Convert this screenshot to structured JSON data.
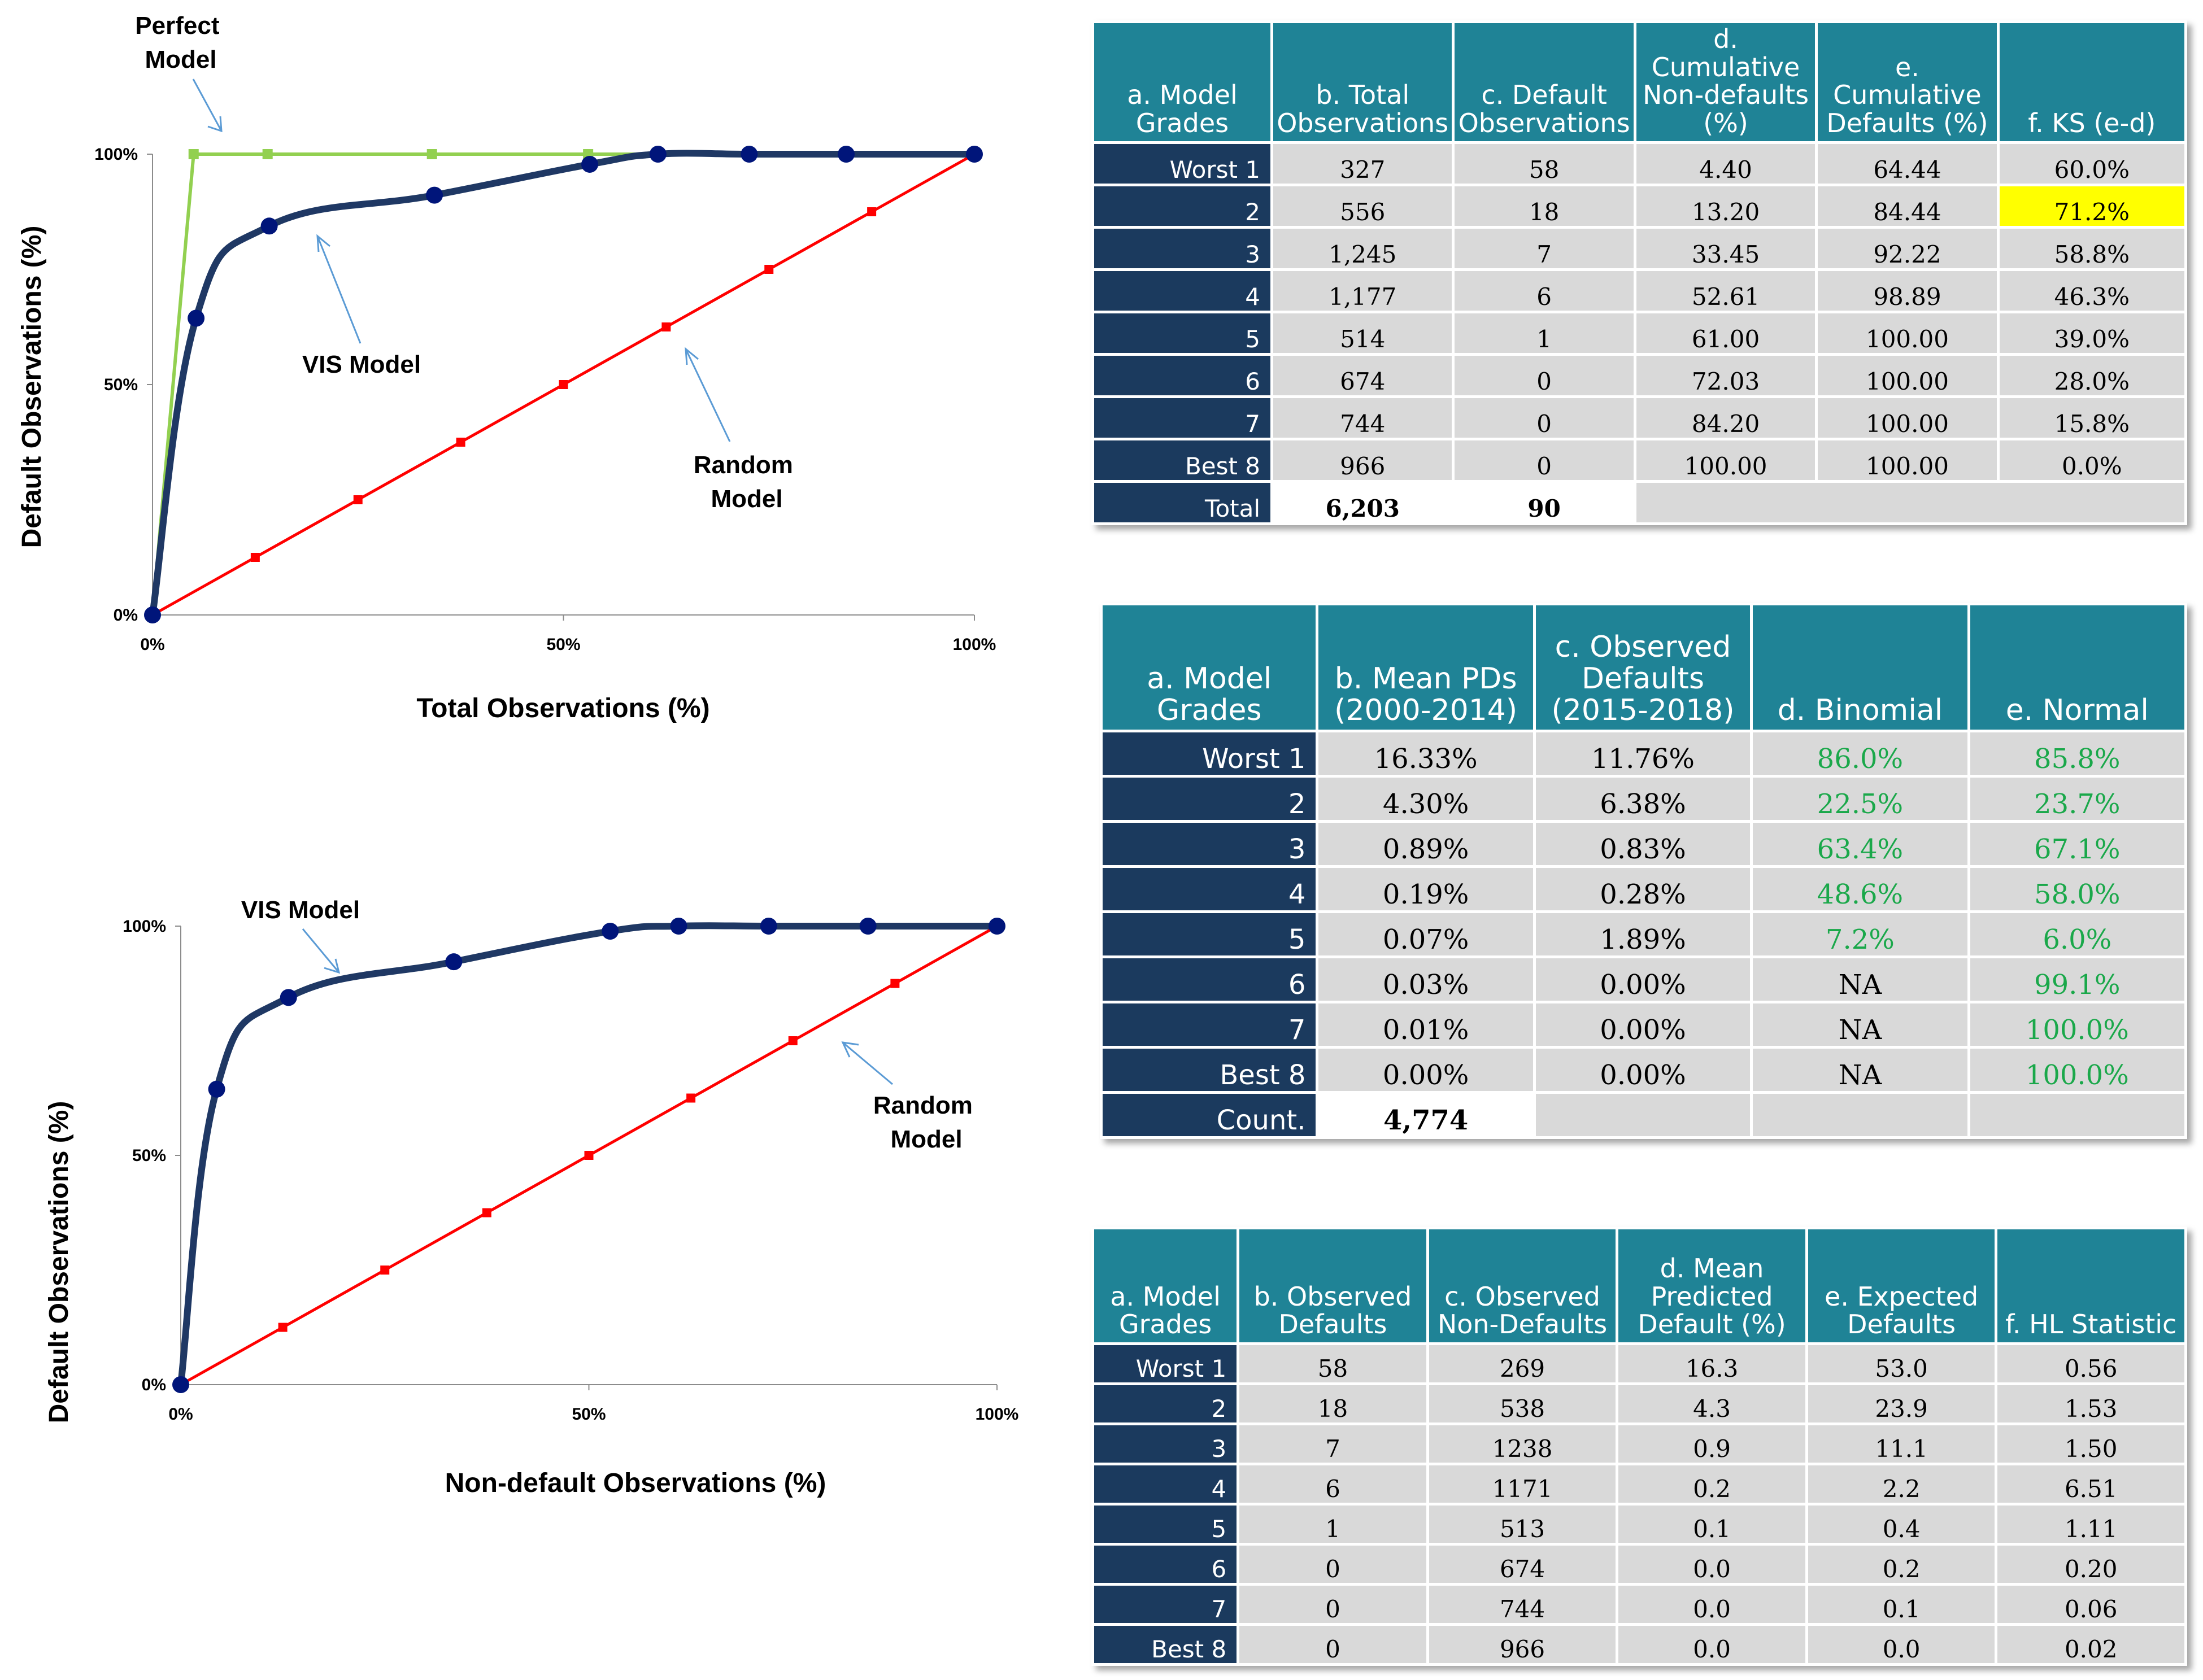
{
  "chart_data": [
    {
      "type": "line",
      "title": "",
      "xlabel": "Total Observations (%)",
      "ylabel": "Default Observations (%)",
      "xlim": [
        0,
        100
      ],
      "ylim": [
        0,
        100
      ],
      "xticks": [
        "0%",
        "50%",
        "100%"
      ],
      "yticks": [
        "0%",
        "50%",
        "100%"
      ],
      "series": [
        {
          "name": "Perfect Model",
          "color": "#92d050",
          "marker": "square",
          "smooth": false,
          "x": [
            0,
            5,
            14,
            34,
            53,
            100
          ],
          "y": [
            0,
            100,
            100,
            100,
            100,
            100
          ]
        },
        {
          "name": "VIS Model",
          "color": "#1f3864",
          "marker": "circle",
          "smooth": true,
          "x": [
            0,
            5.3,
            14.2,
            34.3,
            53.2,
            61.5,
            72.6,
            84.4,
            100
          ],
          "y": [
            0,
            64.4,
            84.4,
            91.1,
            97.8,
            100,
            100,
            100,
            100
          ]
        },
        {
          "name": "Random Model",
          "color": "#ff0000",
          "marker": "square",
          "smooth": false,
          "x": [
            0,
            12.5,
            25,
            37.5,
            50,
            62.5,
            75,
            87.5,
            100
          ],
          "y": [
            0,
            12.5,
            25,
            37.5,
            50,
            62.5,
            75,
            87.5,
            100
          ]
        }
      ],
      "annotations": [
        {
          "text": "Perfect Model",
          "lines": [
            "Perfect",
            "Model"
          ]
        },
        {
          "text": "VIS Model",
          "lines": [
            "VIS Model"
          ]
        },
        {
          "text": "Random Model",
          "lines": [
            "Random",
            "Model"
          ]
        }
      ]
    },
    {
      "type": "line",
      "title": "",
      "xlabel": "Non-default Observations (%)",
      "ylabel": "Default Observations (%)",
      "xlim": [
        0,
        100
      ],
      "ylim": [
        0,
        100
      ],
      "xticks": [
        "0%",
        "50%",
        "100%"
      ],
      "yticks": [
        "0%",
        "50%",
        "100%"
      ],
      "series": [
        {
          "name": "VIS Model",
          "color": "#1f3864",
          "marker": "circle",
          "smooth": true,
          "x": [
            0,
            4.4,
            13.2,
            33.45,
            52.61,
            61.0,
            72.03,
            84.2,
            100
          ],
          "y": [
            0,
            64.44,
            84.44,
            92.22,
            98.89,
            100,
            100,
            100,
            100
          ]
        },
        {
          "name": "Random Model",
          "color": "#ff0000",
          "marker": "square",
          "smooth": false,
          "x": [
            0,
            12.5,
            25,
            37.5,
            50,
            62.5,
            75,
            87.5,
            100
          ],
          "y": [
            0,
            12.5,
            25,
            37.5,
            50,
            62.5,
            75,
            87.5,
            100
          ]
        }
      ],
      "annotations": [
        {
          "text": "VIS Model",
          "lines": [
            "VIS Model"
          ]
        },
        {
          "text": "Random Model",
          "lines": [
            "Random",
            "Model"
          ]
        }
      ]
    },
    {
      "type": "table",
      "columns": [
        "a. Model Grades",
        "b. Total Observations",
        "c. Default Observations",
        "d. Cumulative Non-defaults (%)",
        "e. Cumulative Defaults (%)",
        "f. KS (e-d)"
      ],
      "rows": [
        [
          "Worst 1",
          "327",
          "58",
          "4.40",
          "64.44",
          "60.0%"
        ],
        [
          "2",
          "556",
          "18",
          "13.20",
          "84.44",
          "71.2%"
        ],
        [
          "3",
          "1,245",
          "7",
          "33.45",
          "92.22",
          "58.8%"
        ],
        [
          "4",
          "1,177",
          "6",
          "52.61",
          "98.89",
          "46.3%"
        ],
        [
          "5",
          "514",
          "1",
          "61.00",
          "100.00",
          "39.0%"
        ],
        [
          "6",
          "674",
          "0",
          "72.03",
          "100.00",
          "28.0%"
        ],
        [
          "7",
          "744",
          "0",
          "84.20",
          "100.00",
          "15.8%"
        ],
        [
          "Best 8",
          "966",
          "0",
          "100.00",
          "100.00",
          "0.0%"
        ]
      ],
      "total": [
        "Total",
        "6,203",
        "90"
      ],
      "highlight": {
        "row": 1,
        "col": 5,
        "color": "#ffff00"
      }
    },
    {
      "type": "table",
      "columns": [
        "a. Model Grades",
        "b. Mean PDs (2000-2014)",
        "c. Observed Defaults (2015-2018)",
        "d. Binomial",
        "e. Normal"
      ],
      "rows": [
        [
          "Worst 1",
          "16.33%",
          "11.76%",
          "86.0%",
          "85.8%"
        ],
        [
          "2",
          "4.30%",
          "6.38%",
          "22.5%",
          "23.7%"
        ],
        [
          "3",
          "0.89%",
          "0.83%",
          "63.4%",
          "67.1%"
        ],
        [
          "4",
          "0.19%",
          "0.28%",
          "48.6%",
          "58.0%"
        ],
        [
          "5",
          "0.07%",
          "1.89%",
          "7.2%",
          "6.0%"
        ],
        [
          "6",
          "0.03%",
          "0.00%",
          "NA",
          "99.1%"
        ],
        [
          "7",
          "0.01%",
          "0.00%",
          "NA",
          "100.0%"
        ],
        [
          "Best 8",
          "0.00%",
          "0.00%",
          "NA",
          "100.0%"
        ]
      ],
      "total": [
        "Count.",
        "4,774"
      ],
      "green_color": "#1aa84a"
    },
    {
      "type": "table",
      "columns": [
        "a. Model Grades",
        "b. Observed Defaults",
        "c. Observed Non-Defaults",
        "d. Mean Predicted Default (%)",
        "e. Expected Defaults",
        "f. HL Statistic"
      ],
      "rows": [
        [
          "Worst 1",
          "58",
          "269",
          "16.3",
          "53.0",
          "0.56"
        ],
        [
          "2",
          "18",
          "538",
          "4.3",
          "23.9",
          "1.53"
        ],
        [
          "3",
          "7",
          "1238",
          "0.9",
          "11.1",
          "1.50"
        ],
        [
          "4",
          "6",
          "1171",
          "0.2",
          "2.2",
          "6.51"
        ],
        [
          "5",
          "1",
          "513",
          "0.1",
          "0.4",
          "1.11"
        ],
        [
          "6",
          "0",
          "674",
          "0.0",
          "0.2",
          "0.20"
        ],
        [
          "7",
          "0",
          "744",
          "0.0",
          "0.1",
          "0.06"
        ],
        [
          "Best 8",
          "0",
          "966",
          "0.0",
          "0.0",
          "0.02"
        ]
      ]
    }
  ]
}
